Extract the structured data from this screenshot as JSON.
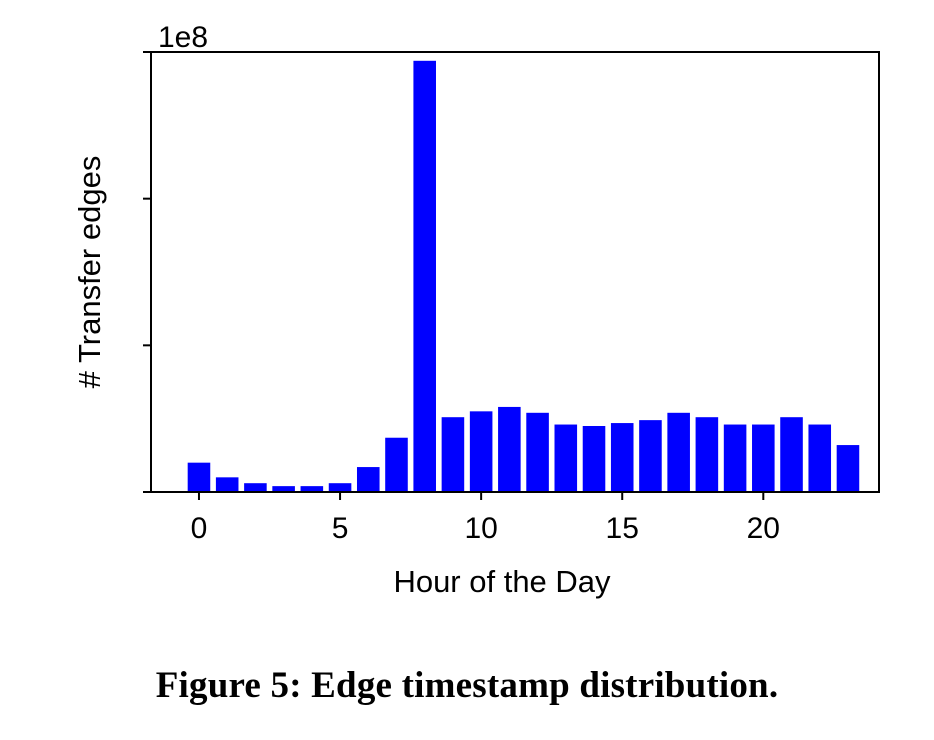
{
  "caption": "Figure 5: Edge timestamp distribution.",
  "colors": {
    "bar": "#0000ff",
    "axis": "#000000"
  },
  "chart_data": {
    "type": "bar",
    "xlabel": "Hour of the Day",
    "ylabel": "# Transfer edges",
    "y_offset_text": "1e8",
    "xlim": [
      -1.7,
      24.1
    ],
    "ylim": [
      0,
      3.0
    ],
    "x_ticks": [
      0,
      5,
      10,
      15,
      20
    ],
    "y_ticks": [
      0,
      1,
      2,
      3
    ],
    "grid": false,
    "legend": "none",
    "categories": [
      0,
      1,
      2,
      3,
      4,
      5,
      6,
      7,
      8,
      9,
      10,
      11,
      12,
      13,
      14,
      15,
      16,
      17,
      18,
      19,
      20,
      21,
      22,
      23
    ],
    "values": [
      0.2,
      0.1,
      0.06,
      0.04,
      0.04,
      0.06,
      0.17,
      0.37,
      2.94,
      0.51,
      0.55,
      0.58,
      0.54,
      0.46,
      0.45,
      0.47,
      0.49,
      0.54,
      0.51,
      0.46,
      0.46,
      0.51,
      0.46,
      0.32
    ]
  }
}
